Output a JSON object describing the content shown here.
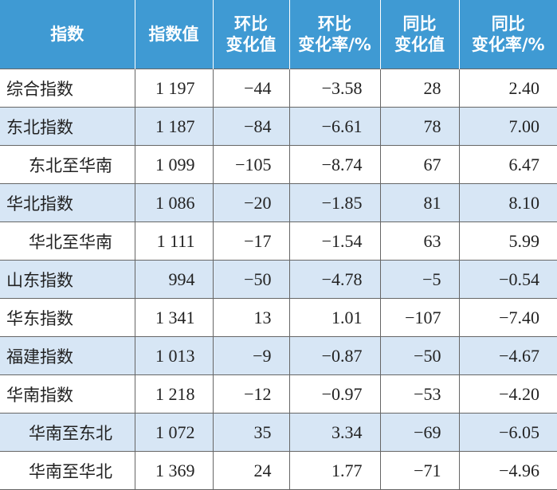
{
  "table": {
    "header": [
      [
        "指数"
      ],
      [
        "指数值"
      ],
      [
        "环比",
        "变化值"
      ],
      [
        "环比",
        "变化率/%"
      ],
      [
        "同比",
        "变化值"
      ],
      [
        "同比",
        "变化率/%"
      ]
    ],
    "rows": [
      {
        "indented": false,
        "cells": [
          "综合指数",
          "1 197",
          "−44",
          "−3.58",
          "28",
          "2.40"
        ]
      },
      {
        "indented": false,
        "cells": [
          "东北指数",
          "1 187",
          "−84",
          "−6.61",
          "78",
          "7.00"
        ]
      },
      {
        "indented": true,
        "cells": [
          "东北至华南",
          "1 099",
          "−105",
          "−8.74",
          "67",
          "6.47"
        ]
      },
      {
        "indented": false,
        "cells": [
          "华北指数",
          "1 086",
          "−20",
          "−1.85",
          "81",
          "8.10"
        ]
      },
      {
        "indented": true,
        "cells": [
          "华北至华南",
          "1 111",
          "−17",
          "−1.54",
          "63",
          "5.99"
        ]
      },
      {
        "indented": false,
        "cells": [
          "山东指数",
          "994",
          "−50",
          "−4.78",
          "−5",
          "−0.54"
        ]
      },
      {
        "indented": false,
        "cells": [
          "华东指数",
          "1 341",
          "13",
          "1.01",
          "−107",
          "−7.40"
        ]
      },
      {
        "indented": false,
        "cells": [
          "福建指数",
          "1 013",
          "−9",
          "−0.87",
          "−50",
          "−4.67"
        ]
      },
      {
        "indented": false,
        "cells": [
          "华南指数",
          "1 218",
          "−12",
          "−0.97",
          "−53",
          "−4.20"
        ]
      },
      {
        "indented": true,
        "cells": [
          "华南至东北",
          "1 072",
          "35",
          "3.34",
          "−69",
          "−6.05"
        ]
      },
      {
        "indented": true,
        "cells": [
          "华南至华北",
          "1 369",
          "24",
          "1.77",
          "−71",
          "−4.96"
        ]
      }
    ]
  }
}
